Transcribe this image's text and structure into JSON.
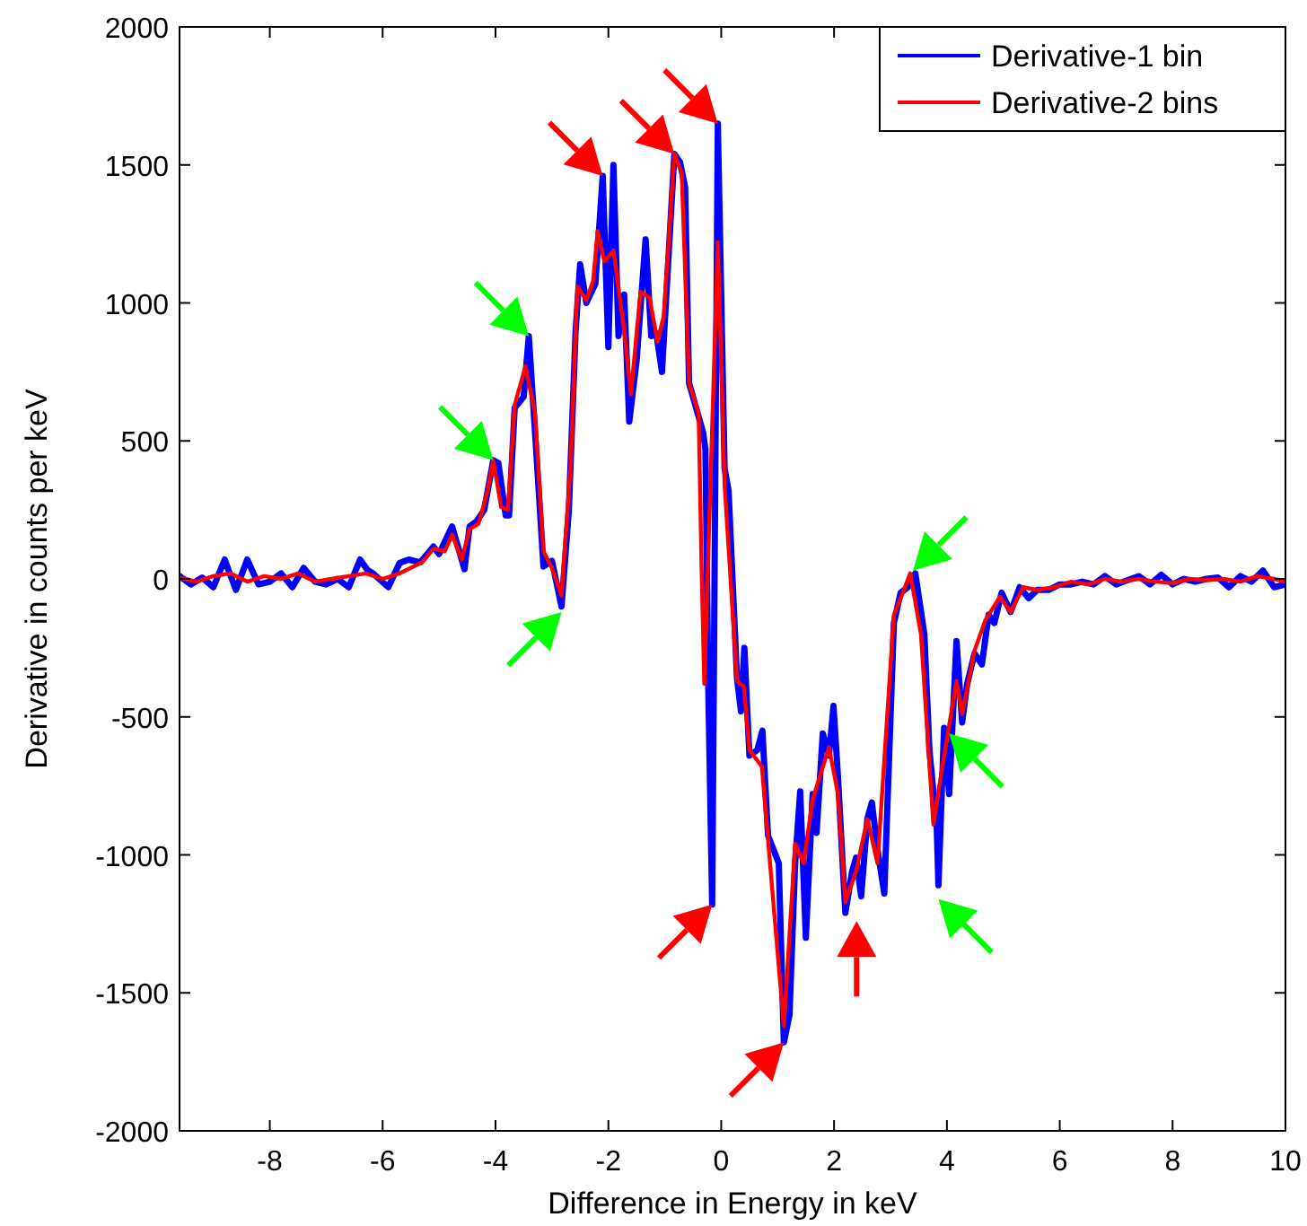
{
  "chart_data": {
    "type": "line",
    "xlabel": "Difference in Energy in keV",
    "ylabel": "Derivative in counts per keV",
    "xlim": [
      -9.6,
      10
    ],
    "ylim": [
      -2000,
      2000
    ],
    "xticks": [
      -8,
      -6,
      -4,
      -2,
      0,
      2,
      4,
      6,
      8,
      10
    ],
    "yticks": [
      -2000,
      -1500,
      -1000,
      -500,
      0,
      500,
      1000,
      1500,
      2000
    ],
    "grid": false,
    "legend": "top right",
    "series": [
      {
        "name": "Derivative-1 bin",
        "color": "#0000ff",
        "x": [
          -9.6,
          -9.4,
          -9.2,
          -9.0,
          -8.8,
          -8.6,
          -8.4,
          -8.2,
          -8.0,
          -7.8,
          -7.6,
          -7.4,
          -7.2,
          -7.0,
          -6.8,
          -6.6,
          -6.4,
          -6.27,
          -6.17,
          -5.9,
          -5.7,
          -5.54,
          -5.33,
          -5.1,
          -5.0,
          -4.77,
          -4.67,
          -4.55,
          -4.46,
          -4.33,
          -4.2,
          -4.04,
          -3.95,
          -3.82,
          -3.76,
          -3.66,
          -3.5,
          -3.41,
          -3.28,
          -3.15,
          -3.0,
          -2.83,
          -2.7,
          -2.58,
          -2.5,
          -2.39,
          -2.23,
          -2.1,
          -2.0,
          -1.91,
          -1.82,
          -1.72,
          -1.63,
          -1.5,
          -1.34,
          -1.24,
          -1.15,
          -1.05,
          -0.83,
          -0.73,
          -0.64,
          -0.57,
          -0.32,
          -0.28,
          -0.23,
          -0.16,
          -0.06,
          0.06,
          0.13,
          0.28,
          0.35,
          0.41,
          0.5,
          0.64,
          0.73,
          0.83,
          1.02,
          1.11,
          1.21,
          1.31,
          1.4,
          1.5,
          1.62,
          1.69,
          1.8,
          1.91,
          1.99,
          2.07,
          2.2,
          2.32,
          2.39,
          2.48,
          2.59,
          2.67,
          2.77,
          2.89,
          3.06,
          3.18,
          3.31,
          3.44,
          3.6,
          3.69,
          3.82,
          3.85,
          3.95,
          4.04,
          4.17,
          4.27,
          4.36,
          4.49,
          4.62,
          4.74,
          4.84,
          4.97,
          5.13,
          5.29,
          5.45,
          5.6,
          5.8,
          6.0,
          6.2,
          6.4,
          6.6,
          6.8,
          7.0,
          7.2,
          7.4,
          7.6,
          7.8,
          8.0,
          8.2,
          8.4,
          8.6,
          8.8,
          9.0,
          9.2,
          9.4,
          9.6,
          9.8,
          10.0
        ],
        "values": [
          10,
          -20,
          5,
          -30,
          70,
          -40,
          70,
          -20,
          -10,
          20,
          -30,
          40,
          -10,
          -20,
          0,
          -30,
          70,
          33,
          20,
          -30,
          58,
          70,
          60,
          117,
          90,
          190,
          120,
          35,
          190,
          210,
          250,
          430,
          420,
          230,
          230,
          620,
          660,
          880,
          470,
          45,
          65,
          -100,
          250,
          900,
          1140,
          1000,
          1070,
          1460,
          840,
          1500,
          880,
          1030,
          570,
          790,
          1230,
          880,
          890,
          750,
          1540,
          1510,
          1420,
          710,
          530,
          470,
          -380,
          -1180,
          1650,
          400,
          320,
          -360,
          -480,
          -250,
          -640,
          -620,
          -550,
          -930,
          -1030,
          -1680,
          -1580,
          -1030,
          -770,
          -1300,
          -780,
          -920,
          -560,
          -640,
          -460,
          -720,
          -1210,
          -1060,
          -1010,
          -1150,
          -870,
          -810,
          -980,
          -1140,
          -160,
          -50,
          -30,
          20,
          -200,
          -620,
          -900,
          -1110,
          -540,
          -780,
          -225,
          -520,
          -380,
          -270,
          -310,
          -130,
          -160,
          -50,
          -120,
          -30,
          -70,
          -40,
          -40,
          -20,
          -20,
          -10,
          -20,
          10,
          -20,
          -5,
          10,
          -20,
          15,
          -20,
          0,
          -10,
          0,
          5,
          -30,
          10,
          -10,
          30,
          -30,
          -20
        ]
      },
      {
        "name": "Derivative-2 bins",
        "color": "#ff0000",
        "x": [
          -9.6,
          -9.3,
          -9.0,
          -8.7,
          -8.4,
          -8.1,
          -7.8,
          -7.5,
          -7.2,
          -6.9,
          -6.6,
          -6.3,
          -6.0,
          -5.7,
          -5.5,
          -5.3,
          -5.1,
          -4.9,
          -4.77,
          -4.6,
          -4.46,
          -4.3,
          -4.14,
          -4.04,
          -3.9,
          -3.78,
          -3.66,
          -3.47,
          -3.3,
          -3.15,
          -3.0,
          -2.83,
          -2.67,
          -2.55,
          -2.39,
          -2.27,
          -2.19,
          -2.07,
          -1.91,
          -1.72,
          -1.6,
          -1.43,
          -1.27,
          -1.13,
          -1.02,
          -0.83,
          -0.7,
          -0.57,
          -0.4,
          -0.35,
          -0.3,
          -0.06,
          0.06,
          0.28,
          0.4,
          0.5,
          0.72,
          1.11,
          1.31,
          1.46,
          1.62,
          1.91,
          2.07,
          2.2,
          2.39,
          2.59,
          2.77,
          3.06,
          3.22,
          3.35,
          3.54,
          3.76,
          3.92,
          4.17,
          4.27,
          4.49,
          4.68,
          4.94,
          5.13,
          5.35,
          5.6,
          5.9,
          6.2,
          6.5,
          6.8,
          7.1,
          7.4,
          7.7,
          8.0,
          8.3,
          8.6,
          8.9,
          9.2,
          9.5,
          9.8,
          10.0
        ],
        "values": [
          5,
          -10,
          10,
          20,
          -10,
          10,
          0,
          20,
          -10,
          0,
          10,
          20,
          0,
          20,
          40,
          60,
          110,
          100,
          160,
          70,
          180,
          200,
          320,
          430,
          260,
          250,
          630,
          770,
          600,
          100,
          40,
          -60,
          410,
          1060,
          1010,
          1080,
          1260,
          1150,
          1190,
          900,
          670,
          1040,
          1020,
          860,
          950,
          1540,
          1470,
          710,
          600,
          60,
          -380,
          1220,
          340,
          -370,
          -390,
          -620,
          -680,
          -1620,
          -960,
          -1030,
          -800,
          -610,
          -780,
          -1170,
          -1060,
          -870,
          -1030,
          -130,
          -50,
          20,
          -200,
          -890,
          -680,
          -370,
          -490,
          -260,
          -150,
          -65,
          -120,
          -30,
          -40,
          -30,
          -10,
          -20,
          0,
          -10,
          0,
          -10,
          -15,
          0,
          -5,
          0,
          -10,
          10,
          0,
          -10
        ]
      }
    ]
  }
}
